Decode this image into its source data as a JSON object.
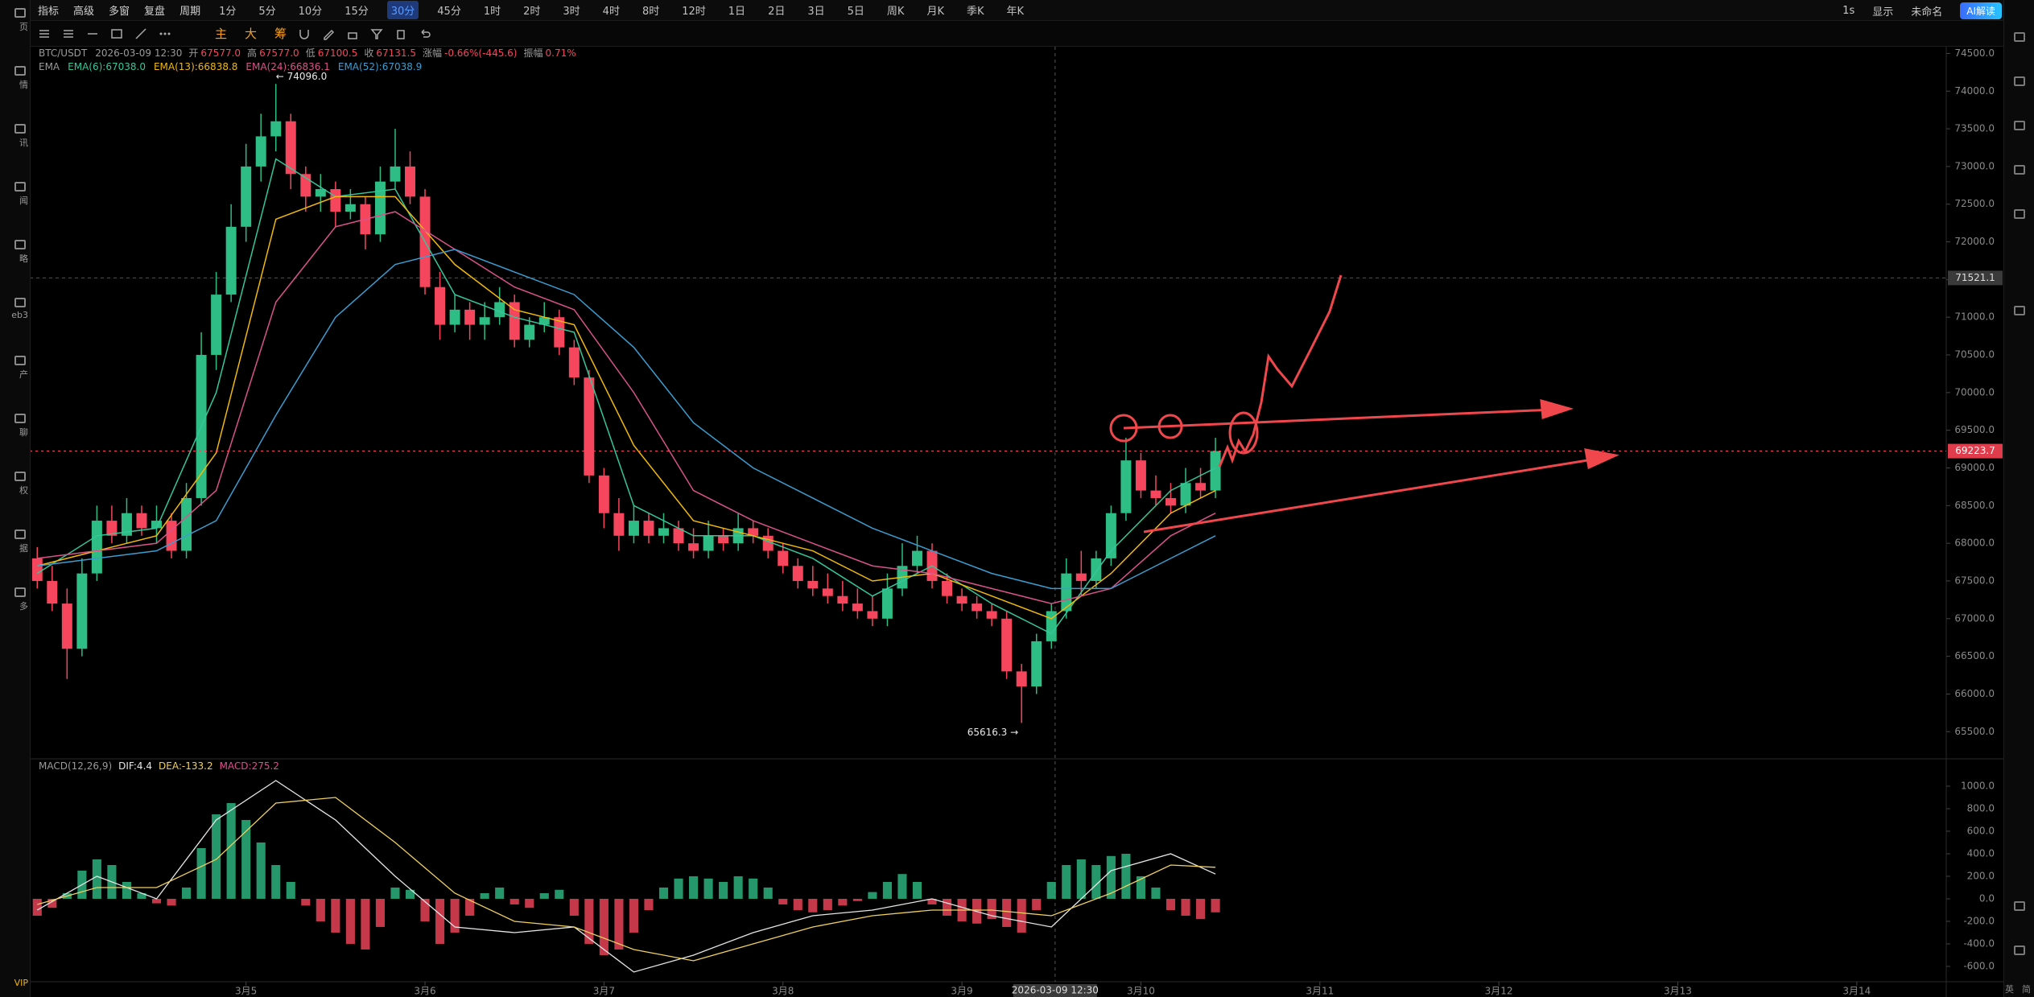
{
  "toolbar": {
    "menu": [
      "指标",
      "高级",
      "多窗",
      "复盘",
      "周期"
    ],
    "periods": [
      "1分",
      "5分",
      "10分",
      "15分",
      "30分",
      "45分",
      "1时",
      "2时",
      "3时",
      "4时",
      "8时",
      "12时",
      "1日",
      "2日",
      "3日",
      "5日",
      "周K",
      "月K",
      "季K",
      "年K"
    ],
    "active_period": 4,
    "right": [
      "1s",
      "显示",
      "未命名",
      "AI解读"
    ],
    "tools": [
      "主",
      "大",
      "筹"
    ]
  },
  "sidebar": {
    "items": [
      "页",
      "情",
      "讯",
      "闻",
      "略",
      "eb3",
      "产",
      "聊",
      "权",
      "据",
      "多"
    ],
    "vip": "VIP"
  },
  "footer": [
    "英",
    "简"
  ],
  "chart_data": [
    {
      "type": "candlestick",
      "header": {
        "symbol": "BTC/USDT",
        "time": "2026-03-09 12:30",
        "fields": [
          [
            "开",
            "67577.0"
          ],
          [
            "高",
            "67577.0"
          ],
          [
            "低",
            "67100.5"
          ],
          [
            "收",
            "67131.5"
          ],
          [
            "涨幅",
            "-0.66%(-445.6)"
          ],
          [
            "振幅",
            "0.71%"
          ]
        ],
        "indicator": "EMA"
      },
      "up_color": "#2ebd85",
      "down_color": "#f6465d",
      "xlim": [
        -29,
        228
      ],
      "ylim": [
        65140,
        74590
      ],
      "xticks": [
        {
          "value": 0,
          "label": "3月5"
        },
        {
          "value": 24,
          "label": "3月6"
        },
        {
          "value": 48,
          "label": "3月7"
        },
        {
          "value": 72,
          "label": "3月8"
        },
        {
          "value": 96,
          "label": "3月9"
        },
        {
          "value": 120,
          "label": "3月10"
        },
        {
          "value": 144,
          "label": "3月11"
        },
        {
          "value": 168,
          "label": "3月12"
        },
        {
          "value": 192,
          "label": "3月13"
        },
        {
          "value": 216,
          "label": "3月14"
        }
      ],
      "yticks": [
        {
          "value": 65500,
          "label": "65500.0"
        },
        {
          "value": 66000,
          "label": "66000.0"
        },
        {
          "value": 66500,
          "label": "66500.0"
        },
        {
          "value": 67000,
          "label": "67000.0"
        },
        {
          "value": 67500,
          "label": "67500.0"
        },
        {
          "value": 68000,
          "label": "68000.0"
        },
        {
          "value": 68500,
          "label": "68500.0"
        },
        {
          "value": 69000,
          "label": "69000.0"
        },
        {
          "value": 69500,
          "label": "69500.0"
        },
        {
          "value": 70000,
          "label": "70000.0"
        },
        {
          "value": 70500,
          "label": "70500.0"
        },
        {
          "value": 71000,
          "label": "71000.0"
        },
        {
          "value": 71500,
          "label": "71500.0"
        },
        {
          "value": 72000,
          "label": "72000.0"
        },
        {
          "value": 72500,
          "label": "72500.0"
        },
        {
          "value": 73000,
          "label": "73000.0"
        },
        {
          "value": 73500,
          "label": "73500.0"
        },
        {
          "value": 74000,
          "label": "74000.0"
        },
        {
          "value": 74500,
          "label": "74500.0"
        }
      ],
      "crosshair": {
        "x": 108.5,
        "price": 71521.1
      },
      "annotations": [
        {
          "text": "← 74096.0",
          "anchor": "max"
        },
        {
          "text": "65616.3 →",
          "anchor": "min"
        }
      ],
      "x": [
        -28,
        -26,
        -24,
        -22,
        -20,
        -18,
        -16,
        -14,
        -12,
        -10,
        -8,
        -6,
        -4,
        -2,
        0,
        2,
        4,
        6,
        8,
        10,
        12,
        14,
        16,
        18,
        20,
        22,
        24,
        26,
        28,
        30,
        32,
        34,
        36,
        38,
        40,
        42,
        44,
        46,
        48,
        50,
        52,
        54,
        56,
        58,
        60,
        62,
        64,
        66,
        68,
        70,
        72,
        74,
        76,
        78,
        80,
        82,
        84,
        86,
        88,
        90,
        92,
        94,
        96,
        98,
        100,
        102,
        104,
        106,
        108,
        110,
        112,
        114,
        116,
        118,
        120,
        122,
        124,
        126,
        128,
        130
      ],
      "open": [
        67800,
        67500,
        67200,
        66600,
        67600,
        68300,
        68100,
        68400,
        68200,
        68300,
        67900,
        68600,
        70500,
        71300,
        72200,
        73000,
        73400,
        73600,
        72900,
        72600,
        72700,
        72400,
        72500,
        72100,
        72800,
        73000,
        72600,
        71400,
        70900,
        71100,
        70900,
        71000,
        71200,
        70700,
        70900,
        71000,
        70600,
        70200,
        68900,
        68400,
        68100,
        68300,
        68100,
        68200,
        68000,
        67900,
        68100,
        68000,
        68200,
        68100,
        67900,
        67700,
        67500,
        67400,
        67300,
        67200,
        67100,
        67000,
        67400,
        67700,
        67900,
        67500,
        67300,
        67200,
        67100,
        67000,
        66300,
        66100,
        66700,
        67100,
        67600,
        67500,
        67800,
        68400,
        69100,
        68700,
        68600,
        68500,
        68800,
        68700
      ],
      "high": [
        67950,
        67700,
        67400,
        67800,
        68500,
        68500,
        68600,
        68500,
        68500,
        68400,
        68800,
        70800,
        71600,
        72500,
        73300,
        73700,
        74096,
        73700,
        73000,
        72900,
        72800,
        72700,
        72600,
        73000,
        73500,
        73200,
        72700,
        71600,
        71300,
        71200,
        71200,
        71400,
        71300,
        71000,
        71200,
        71100,
        70700,
        70300,
        69000,
        68600,
        68500,
        68400,
        68400,
        68300,
        68200,
        68300,
        68200,
        68400,
        68300,
        68200,
        68000,
        67800,
        67700,
        67600,
        67500,
        67400,
        67300,
        67600,
        68000,
        68100,
        68000,
        67600,
        67400,
        67300,
        67200,
        67100,
        66400,
        66800,
        67200,
        67800,
        67900,
        67900,
        68500,
        69400,
        69200,
        68900,
        68800,
        69000,
        69000,
        69400
      ],
      "low": [
        67400,
        67100,
        66200,
        66500,
        67500,
        68000,
        68000,
        68100,
        68000,
        67800,
        67800,
        68500,
        70300,
        71200,
        72000,
        72800,
        73200,
        72700,
        72400,
        72400,
        72200,
        72300,
        71900,
        72000,
        72700,
        72500,
        71300,
        70700,
        70800,
        70700,
        70700,
        70900,
        70600,
        70600,
        70800,
        70500,
        70100,
        68800,
        68200,
        67900,
        68000,
        68000,
        68000,
        67900,
        67800,
        67800,
        67900,
        67900,
        68000,
        67800,
        67600,
        67400,
        67300,
        67200,
        67100,
        67000,
        66900,
        66900,
        67300,
        67600,
        67400,
        67200,
        67100,
        67000,
        66900,
        66200,
        65616.3,
        66000,
        66600,
        67000,
        67300,
        67400,
        67700,
        68300,
        68600,
        68500,
        68400,
        68400,
        68600,
        68600
      ],
      "close": [
        67500,
        67200,
        66600,
        67600,
        68300,
        68100,
        68400,
        68200,
        68300,
        67900,
        68600,
        70500,
        71300,
        72200,
        73000,
        73400,
        73600,
        72900,
        72600,
        72700,
        72400,
        72500,
        72100,
        72800,
        73000,
        72600,
        71400,
        70900,
        71100,
        70900,
        71000,
        71200,
        70700,
        70900,
        71000,
        70600,
        70200,
        68900,
        68400,
        68100,
        68300,
        68100,
        68200,
        68000,
        67900,
        68100,
        68000,
        68200,
        68100,
        67900,
        67700,
        67500,
        67400,
        67300,
        67200,
        67100,
        67000,
        67400,
        67700,
        67900,
        67500,
        67300,
        67200,
        67100,
        67000,
        66300,
        66100,
        66700,
        67100,
        67600,
        67500,
        67800,
        68400,
        69100,
        68700,
        68600,
        68500,
        68800,
        68700,
        69223.7
      ],
      "series": [
        {
          "name": "EMA(6):67038.0",
          "color": "#34c79a",
          "x": [
            -28,
            -20,
            -12,
            -4,
            4,
            12,
            20,
            28,
            36,
            44,
            52,
            60,
            68,
            76,
            84,
            92,
            100,
            108,
            116,
            124,
            130
          ],
          "values": [
            67600,
            68100,
            68200,
            70000,
            73100,
            72600,
            72700,
            71300,
            71000,
            70800,
            68500,
            68100,
            68100,
            67800,
            67300,
            67700,
            67200,
            66800,
            67900,
            68700,
            69000
          ]
        },
        {
          "name": "EMA(13):66838.8",
          "color": "#f0b90b",
          "x": [
            -28,
            -20,
            -12,
            -4,
            4,
            12,
            20,
            28,
            36,
            44,
            52,
            60,
            68,
            76,
            84,
            92,
            100,
            108,
            116,
            124,
            130
          ],
          "values": [
            67700,
            67900,
            68100,
            69200,
            72300,
            72600,
            72600,
            71700,
            71100,
            70900,
            69300,
            68300,
            68100,
            67900,
            67500,
            67600,
            67300,
            67000,
            67600,
            68400,
            68700
          ]
        },
        {
          "name": "EMA(24):66836.1",
          "color": "#d9538a",
          "x": [
            -28,
            -20,
            -12,
            -4,
            4,
            12,
            20,
            28,
            36,
            44,
            52,
            60,
            68,
            76,
            84,
            92,
            100,
            108,
            116,
            124,
            130
          ],
          "values": [
            67800,
            67900,
            68000,
            68700,
            71200,
            72200,
            72400,
            71900,
            71400,
            71100,
            70000,
            68700,
            68300,
            68000,
            67700,
            67600,
            67400,
            67200,
            67400,
            68100,
            68400
          ]
        },
        {
          "name": "EMA(52):67038.9",
          "color": "#3c9dd0",
          "x": [
            -28,
            -20,
            -12,
            -4,
            4,
            12,
            20,
            28,
            36,
            44,
            52,
            60,
            68,
            76,
            84,
            92,
            100,
            108,
            116,
            124,
            130
          ],
          "values": [
            67700,
            67800,
            67900,
            68300,
            69700,
            71000,
            71700,
            71900,
            71600,
            71300,
            70600,
            69600,
            69000,
            68600,
            68200,
            67900,
            67600,
            67400,
            67400,
            67800,
            68100
          ]
        }
      ]
    },
    {
      "type": "macd",
      "title": "MACD(12,26,9)",
      "xlim": [
        -29,
        228
      ],
      "ylim": [
        -736,
        1243
      ],
      "yticks": [
        {
          "value": -600,
          "label": "-600.0"
        },
        {
          "value": -400,
          "label": "-400.0"
        },
        {
          "value": -200,
          "label": "-200.0"
        },
        {
          "value": 0,
          "label": "0.0"
        },
        {
          "value": 200,
          "label": "200.0"
        },
        {
          "value": 400,
          "label": "400.0"
        },
        {
          "value": 600,
          "label": "600.0"
        },
        {
          "value": 800,
          "label": "800.0"
        },
        {
          "value": 1000,
          "label": "1000.0"
        }
      ],
      "histogram": {
        "name": "MACD:275.2",
        "color": "#e04b8f",
        "up_color": "#2ebd85",
        "down_color": "#f6465d",
        "values": [
          -150,
          -80,
          50,
          250,
          350,
          300,
          150,
          50,
          -40,
          -60,
          100,
          450,
          750,
          850,
          700,
          500,
          300,
          150,
          -60,
          -200,
          -300,
          -400,
          -450,
          -250,
          100,
          80,
          -200,
          -400,
          -300,
          -150,
          50,
          100,
          -50,
          -80,
          50,
          80,
          -150,
          -400,
          -500,
          -450,
          -300,
          -100,
          100,
          180,
          200,
          180,
          150,
          200,
          180,
          100,
          -50,
          -100,
          -120,
          -100,
          -60,
          -20,
          60,
          150,
          220,
          150,
          -50,
          -150,
          -200,
          -220,
          -180,
          -250,
          -300,
          -100,
          150,
          300,
          350,
          300,
          380,
          400,
          200,
          100,
          -100,
          -150,
          -180,
          -120
        ]
      },
      "series": [
        {
          "name": "DIF:4.4",
          "color": "#e6e6e6",
          "x": [
            -28,
            -20,
            -12,
            -4,
            4,
            12,
            20,
            28,
            36,
            44,
            52,
            60,
            68,
            76,
            84,
            92,
            100,
            108,
            116,
            124,
            130
          ],
          "values": [
            -100,
            200,
            0,
            700,
            1050,
            700,
            200,
            -250,
            -300,
            -250,
            -650,
            -500,
            -300,
            -150,
            -100,
            0,
            -150,
            -250,
            250,
            400,
            220
          ]
        },
        {
          "name": "DEA:-133.2",
          "color": "#f0d060",
          "x": [
            -28,
            -20,
            -12,
            -4,
            4,
            12,
            20,
            28,
            36,
            44,
            52,
            60,
            68,
            76,
            84,
            92,
            100,
            108,
            116,
            124,
            130
          ],
          "values": [
            -50,
            100,
            100,
            350,
            850,
            900,
            500,
            50,
            -200,
            -250,
            -450,
            -550,
            -400,
            -250,
            -150,
            -100,
            -100,
            -150,
            50,
            300,
            280
          ]
        }
      ]
    }
  ]
}
